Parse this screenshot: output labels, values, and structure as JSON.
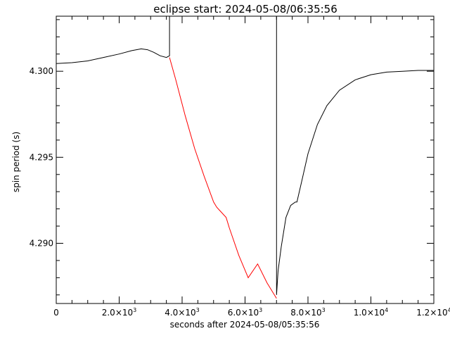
{
  "chart_data": {
    "type": "line",
    "title": "eclipse start: 2024-05-08/06:35:56",
    "xlabel": "seconds after 2024-05-08/05:35:56",
    "ylabel": "spin period (s)",
    "xlim": [
      0,
      12000
    ],
    "ylim": [
      4.2865,
      4.3032
    ],
    "x_major_ticks": [
      {
        "value": 0,
        "mant": "0",
        "exp": ""
      },
      {
        "value": 2000,
        "mant": "2.0×10",
        "exp": "3"
      },
      {
        "value": 4000,
        "mant": "4.0×10",
        "exp": "3"
      },
      {
        "value": 6000,
        "mant": "6.0×10",
        "exp": "3"
      },
      {
        "value": 8000,
        "mant": "8.0×10",
        "exp": "3"
      },
      {
        "value": 10000,
        "mant": "1.0×10",
        "exp": "4"
      },
      {
        "value": 12000,
        "mant": "1.2×10",
        "exp": "4"
      }
    ],
    "x_minor_step": 500,
    "y_major_ticks": [
      {
        "value": 4.29,
        "label": "4.290"
      },
      {
        "value": 4.295,
        "label": "4.295"
      },
      {
        "value": 4.3,
        "label": "4.300"
      }
    ],
    "y_minor_step": 0.001,
    "grid": false,
    "series": [
      {
        "color": "#000000",
        "x": [
          0,
          500,
          1000,
          1500,
          2000,
          2400,
          2700,
          2900,
          3100,
          3300,
          3500,
          3600,
          3600,
          7000,
          7000,
          7050,
          7150,
          7300,
          7450,
          7600,
          7650,
          7800,
          8000,
          8300,
          8600,
          9000,
          9500,
          10000,
          10500,
          11000,
          11500,
          12000
        ],
        "y": [
          4.30045,
          4.3005,
          4.3006,
          4.3008,
          4.301,
          4.3012,
          4.3013,
          4.30125,
          4.3011,
          4.3009,
          4.3008,
          4.3009,
          4.3032,
          4.3032,
          4.287,
          4.2884,
          4.2898,
          4.2915,
          4.2922,
          4.2924,
          4.2924,
          4.2936,
          4.2952,
          4.2969,
          4.298,
          4.2989,
          4.2995,
          4.2998,
          4.29995,
          4.3,
          4.30005,
          4.30005
        ]
      },
      {
        "color": "#ff0000",
        "x": [
          3600,
          3800,
          4100,
          4400,
          4700,
          5000,
          5100,
          5200,
          5300,
          5400,
          5500,
          5800,
          6100,
          6400,
          6700,
          7000
        ],
        "y": [
          4.3008,
          4.2995,
          4.2974,
          4.2955,
          4.2939,
          4.2924,
          4.2921,
          4.2919,
          4.2917,
          4.2915,
          4.2909,
          4.2893,
          4.288,
          4.2888,
          4.2877,
          4.2868
        ]
      }
    ]
  }
}
